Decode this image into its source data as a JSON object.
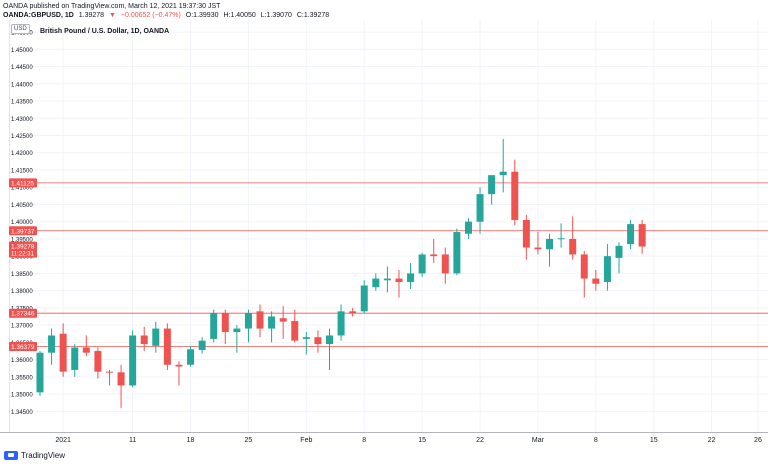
{
  "header": {
    "line1": "OANDA published on TradingView.com, March 12, 2021 19:37:30 JST",
    "symbol": "OANDA:GBPUSD, 1D",
    "last": "1.39278",
    "change": "−0.00652 (−0.47%)",
    "open": "O:1.39930",
    "high": "H:1.40050",
    "low": "L:1.39070",
    "close": "C:1.39278"
  },
  "chart_data": {
    "type": "candlestick",
    "title": "British Pound / U.S. Dollar, 1D, OANDA",
    "currency": "USD",
    "ylim": [
      1.339,
      1.4585
    ],
    "y_ticks": [
      "1.45500",
      "1.45000",
      "1.44500",
      "1.44000",
      "1.43500",
      "1.43000",
      "1.42500",
      "1.42000",
      "1.41500",
      "1.41000",
      "1.40500",
      "1.40000",
      "1.39500",
      "1.39000",
      "1.38500",
      "1.38000",
      "1.37500",
      "1.37000",
      "1.36500",
      "1.36000",
      "1.35500",
      "1.35000",
      "1.34500"
    ],
    "x_ticks": [
      {
        "label": "2021",
        "index": 2
      },
      {
        "label": "11",
        "index": 8
      },
      {
        "label": "18",
        "index": 13
      },
      {
        "label": "25",
        "index": 18
      },
      {
        "label": "Feb",
        "index": 23
      },
      {
        "label": "8",
        "index": 28
      },
      {
        "label": "15",
        "index": 33
      },
      {
        "label": "22",
        "index": 38
      },
      {
        "label": "Mar",
        "index": 43
      },
      {
        "label": "8",
        "index": 48
      },
      {
        "label": "15",
        "index": 53
      },
      {
        "label": "22",
        "index": 58
      },
      {
        "label": "26",
        "index": 62
      }
    ],
    "candles": [
      {
        "o": 1.3505,
        "h": 1.3625,
        "l": 1.3495,
        "c": 1.362
      },
      {
        "o": 1.362,
        "h": 1.369,
        "l": 1.3585,
        "c": 1.367
      },
      {
        "o": 1.3675,
        "h": 1.3705,
        "l": 1.355,
        "c": 1.3565
      },
      {
        "o": 1.357,
        "h": 1.3645,
        "l": 1.355,
        "c": 1.3635
      },
      {
        "o": 1.3635,
        "h": 1.367,
        "l": 1.361,
        "c": 1.362
      },
      {
        "o": 1.3625,
        "h": 1.3635,
        "l": 1.3545,
        "c": 1.3565
      },
      {
        "o": 1.3565,
        "h": 1.357,
        "l": 1.3525,
        "c": 1.3563
      },
      {
        "o": 1.3563,
        "h": 1.3585,
        "l": 1.346,
        "c": 1.3525
      },
      {
        "o": 1.3525,
        "h": 1.3685,
        "l": 1.352,
        "c": 1.367
      },
      {
        "o": 1.367,
        "h": 1.3695,
        "l": 1.3625,
        "c": 1.3645
      },
      {
        "o": 1.364,
        "h": 1.371,
        "l": 1.362,
        "c": 1.369
      },
      {
        "o": 1.369,
        "h": 1.3705,
        "l": 1.357,
        "c": 1.3585
      },
      {
        "o": 1.3585,
        "h": 1.3595,
        "l": 1.3525,
        "c": 1.358
      },
      {
        "o": 1.3585,
        "h": 1.364,
        "l": 1.358,
        "c": 1.363
      },
      {
        "o": 1.3628,
        "h": 1.3665,
        "l": 1.3618,
        "c": 1.3655
      },
      {
        "o": 1.366,
        "h": 1.3745,
        "l": 1.365,
        "c": 1.3735
      },
      {
        "o": 1.3735,
        "h": 1.3745,
        "l": 1.3645,
        "c": 1.368
      },
      {
        "o": 1.368,
        "h": 1.37,
        "l": 1.362,
        "c": 1.369
      },
      {
        "o": 1.369,
        "h": 1.3745,
        "l": 1.365,
        "c": 1.3735
      },
      {
        "o": 1.374,
        "h": 1.376,
        "l": 1.3665,
        "c": 1.369
      },
      {
        "o": 1.369,
        "h": 1.374,
        "l": 1.365,
        "c": 1.3725
      },
      {
        "o": 1.372,
        "h": 1.3755,
        "l": 1.366,
        "c": 1.371
      },
      {
        "o": 1.3712,
        "h": 1.3745,
        "l": 1.365,
        "c": 1.3655
      },
      {
        "o": 1.366,
        "h": 1.368,
        "l": 1.3615,
        "c": 1.3665
      },
      {
        "o": 1.3665,
        "h": 1.3685,
        "l": 1.362,
        "c": 1.3645
      },
      {
        "o": 1.3645,
        "h": 1.369,
        "l": 1.357,
        "c": 1.367
      },
      {
        "o": 1.367,
        "h": 1.376,
        "l": 1.3655,
        "c": 1.374
      },
      {
        "o": 1.374,
        "h": 1.375,
        "l": 1.3725,
        "c": 1.3735
      },
      {
        "o": 1.374,
        "h": 1.383,
        "l": 1.3735,
        "c": 1.3815
      },
      {
        "o": 1.381,
        "h": 1.385,
        "l": 1.38,
        "c": 1.3835
      },
      {
        "o": 1.383,
        "h": 1.387,
        "l": 1.3795,
        "c": 1.3835
      },
      {
        "o": 1.3835,
        "h": 1.386,
        "l": 1.378,
        "c": 1.3825
      },
      {
        "o": 1.3825,
        "h": 1.388,
        "l": 1.3805,
        "c": 1.385
      },
      {
        "o": 1.385,
        "h": 1.391,
        "l": 1.384,
        "c": 1.3905
      },
      {
        "o": 1.3905,
        "h": 1.395,
        "l": 1.388,
        "c": 1.39
      },
      {
        "o": 1.3905,
        "h": 1.3925,
        "l": 1.382,
        "c": 1.385
      },
      {
        "o": 1.385,
        "h": 1.398,
        "l": 1.3845,
        "c": 1.397
      },
      {
        "o": 1.3965,
        "h": 1.401,
        "l": 1.395,
        "c": 1.4
      },
      {
        "o": 1.4,
        "h": 1.41,
        "l": 1.3965,
        "c": 1.408
      },
      {
        "o": 1.408,
        "h": 1.413,
        "l": 1.405,
        "c": 1.4135
      },
      {
        "o": 1.4135,
        "h": 1.424,
        "l": 1.4085,
        "c": 1.4145
      },
      {
        "o": 1.4145,
        "h": 1.418,
        "l": 1.399,
        "c": 1.4005
      },
      {
        "o": 1.4005,
        "h": 1.402,
        "l": 1.389,
        "c": 1.3925
      },
      {
        "o": 1.3925,
        "h": 1.397,
        "l": 1.3905,
        "c": 1.392
      },
      {
        "o": 1.392,
        "h": 1.3965,
        "l": 1.387,
        "c": 1.395
      },
      {
        "o": 1.395,
        "h": 1.3995,
        "l": 1.3925,
        "c": 1.3952
      },
      {
        "o": 1.395,
        "h": 1.4015,
        "l": 1.389,
        "c": 1.3905
      },
      {
        "o": 1.3905,
        "h": 1.3915,
        "l": 1.378,
        "c": 1.3835
      },
      {
        "o": 1.3835,
        "h": 1.386,
        "l": 1.38,
        "c": 1.382
      },
      {
        "o": 1.3825,
        "h": 1.3935,
        "l": 1.38,
        "c": 1.39
      },
      {
        "o": 1.3895,
        "h": 1.394,
        "l": 1.385,
        "c": 1.393
      },
      {
        "o": 1.3935,
        "h": 1.4005,
        "l": 1.392,
        "c": 1.3993
      },
      {
        "o": 1.3993,
        "h": 1.4005,
        "l": 1.3907,
        "c": 1.3928
      }
    ],
    "hlines": [
      {
        "value": 1.41125,
        "label": "1.41125"
      },
      {
        "value": 1.39737,
        "label": "1.39737"
      },
      {
        "value": 1.37346,
        "label": "1.37346"
      },
      {
        "value": 1.36379,
        "label": "1.36379"
      }
    ],
    "last_price": {
      "value": 1.39278,
      "label": "1.39278",
      "countdown": "11:22:31"
    },
    "colors": {
      "up": "#26a69a",
      "down": "#ef5350",
      "hline": "#ef5350",
      "grid": "#f0f3fa",
      "axis_text": "#131722"
    }
  },
  "footer": {
    "brand": "TradingView"
  }
}
